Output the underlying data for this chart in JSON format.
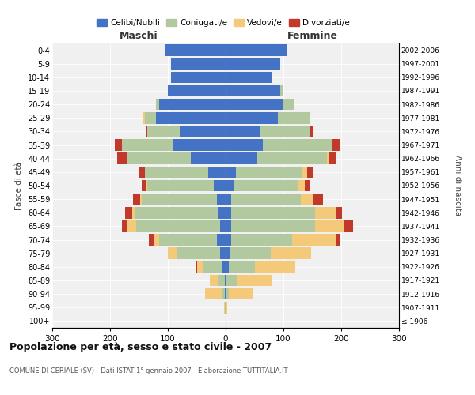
{
  "age_groups": [
    "100+",
    "95-99",
    "90-94",
    "85-89",
    "80-84",
    "75-79",
    "70-74",
    "65-69",
    "60-64",
    "55-59",
    "50-54",
    "45-49",
    "40-44",
    "35-39",
    "30-34",
    "25-29",
    "20-24",
    "15-19",
    "10-14",
    "5-9",
    "0-4"
  ],
  "birth_years": [
    "≤ 1906",
    "1907-1911",
    "1912-1916",
    "1917-1921",
    "1922-1926",
    "1927-1931",
    "1932-1936",
    "1937-1941",
    "1942-1946",
    "1947-1951",
    "1952-1956",
    "1957-1961",
    "1962-1966",
    "1967-1971",
    "1972-1976",
    "1977-1981",
    "1982-1986",
    "1987-1991",
    "1992-1996",
    "1997-2001",
    "2002-2006"
  ],
  "maschi": {
    "celibi": [
      0,
      0,
      1,
      2,
      5,
      10,
      15,
      10,
      12,
      15,
      20,
      30,
      60,
      90,
      80,
      120,
      115,
      100,
      95,
      95,
      105
    ],
    "coniugati": [
      0,
      1,
      5,
      10,
      35,
      75,
      100,
      145,
      145,
      130,
      115,
      110,
      110,
      90,
      55,
      20,
      5,
      0,
      0,
      0,
      0
    ],
    "vedovi": [
      0,
      2,
      30,
      15,
      10,
      15,
      10,
      15,
      5,
      3,
      2,
      0,
      0,
      0,
      0,
      2,
      0,
      0,
      0,
      0,
      0
    ],
    "divorziati": [
      0,
      0,
      0,
      0,
      2,
      0,
      8,
      10,
      12,
      12,
      8,
      10,
      18,
      12,
      3,
      0,
      0,
      0,
      0,
      0,
      0
    ]
  },
  "femmine": {
    "nubili": [
      0,
      0,
      1,
      2,
      5,
      8,
      10,
      10,
      10,
      10,
      15,
      18,
      55,
      65,
      60,
      90,
      100,
      95,
      80,
      95,
      105
    ],
    "coniugate": [
      0,
      0,
      5,
      18,
      45,
      70,
      105,
      145,
      145,
      120,
      110,
      115,
      120,
      120,
      85,
      55,
      18,
      5,
      0,
      0,
      0
    ],
    "vedove": [
      0,
      3,
      40,
      60,
      70,
      70,
      75,
      50,
      35,
      20,
      12,
      8,
      5,
      0,
      0,
      0,
      0,
      0,
      0,
      0,
      0
    ],
    "divorziate": [
      0,
      0,
      0,
      0,
      0,
      0,
      8,
      15,
      12,
      18,
      8,
      10,
      10,
      12,
      5,
      0,
      0,
      0,
      0,
      0,
      0
    ]
  },
  "colors": {
    "celibi": "#4472C4",
    "coniugati": "#B2C9A0",
    "vedovi": "#F5C97A",
    "divorziati": "#C0392B"
  },
  "title": "Popolazione per età, sesso e stato civile - 2007",
  "subtitle": "COMUNE DI CERIALE (SV) - Dati ISTAT 1° gennaio 2007 - Elaborazione TUTTITALIA.IT",
  "ylabel_left": "Fasce di età",
  "ylabel_right": "Anni di nascita",
  "xlabel_left": "Maschi",
  "xlabel_right": "Femmine",
  "xlim": 300,
  "legend_labels": [
    "Celibi/Nubili",
    "Coniugati/e",
    "Vedovi/e",
    "Divorziati/e"
  ],
  "bg_color": "#FFFFFF",
  "plot_bg": "#F0F0F0"
}
